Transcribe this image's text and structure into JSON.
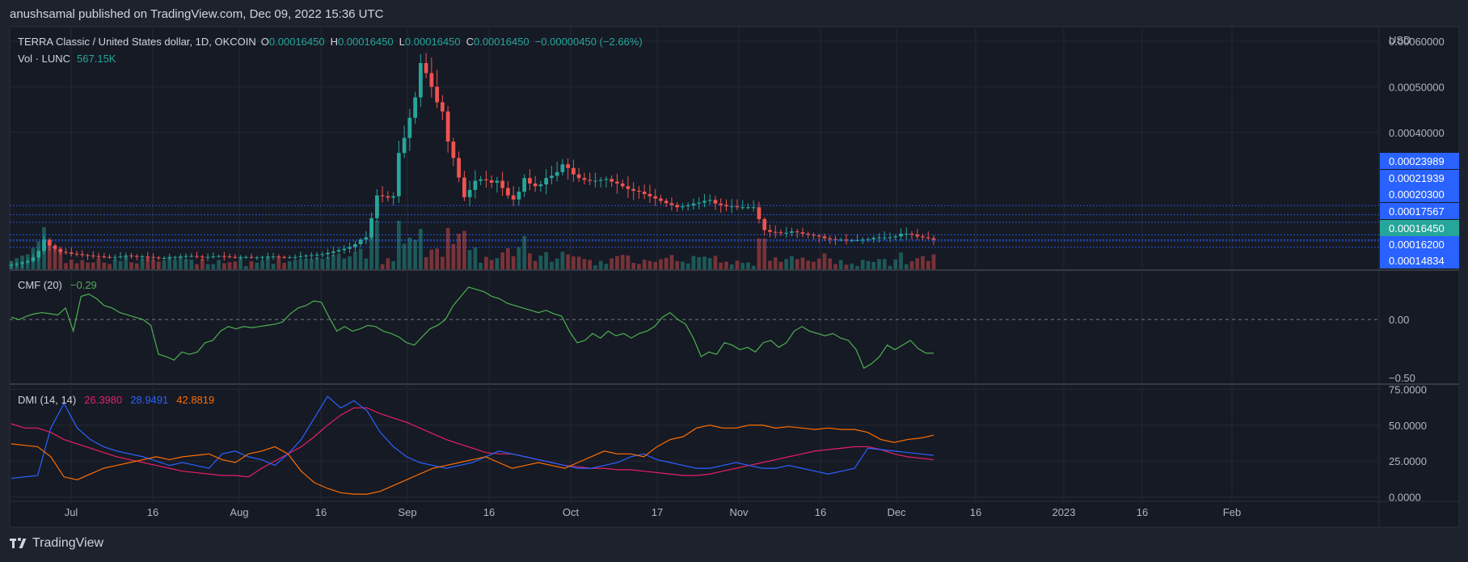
{
  "header": {
    "attribution": "anushsamal published on TradingView.com, Dec 09, 2022 15:36 UTC"
  },
  "legend": {
    "symbol": "TERRA Classic / United States dollar, 1D, OKCOIN",
    "o_label": "O",
    "o_value": "0.00016450",
    "h_label": "H",
    "h_value": "0.00016450",
    "l_label": "L",
    "l_value": "0.00016450",
    "c_label": "C",
    "c_value": "0.00016450",
    "change": "−0.00000450 (−2.66%)",
    "vol_label": "Vol · LUNC",
    "vol_value": "567.15K"
  },
  "footer": {
    "brand": "TradingView"
  },
  "colors": {
    "background": "#1e222d",
    "up": "#26a69a",
    "down": "#ef5350",
    "cmf": "#4caf50",
    "dmi_plus": "#2962ff",
    "dmi_minus": "#e91e63",
    "adx": "#ff6d00",
    "price_tag": "#2962ff",
    "last_price_tag": "#26a69a"
  },
  "chart_data": [
    {
      "type": "candlestick",
      "title": "TERRA Classic / United States dollar, 1D, OKCOIN",
      "axis_currency": "USD",
      "y_ticks": [
        "0.00060000",
        "0.00050000",
        "0.00040000"
      ],
      "ylim": [
        0.0001,
        0.00063
      ],
      "price_levels": [
        "0.00023989",
        "0.00021939",
        "0.00020300",
        "0.00017567",
        "0.00016450",
        "0.00016200",
        "0.00014834"
      ],
      "last_price": "0.00016450",
      "x_ticks": [
        "Jul",
        "16",
        "Aug",
        "16",
        "Sep",
        "16",
        "Oct",
        "17",
        "Nov",
        "16",
        "Dec",
        "16",
        "2023",
        "16",
        "Feb"
      ],
      "date_range": [
        "2022-06-20",
        "2022-12-09"
      ],
      "close_series": [
        0.00011,
        0.000112,
        0.000115,
        0.000118,
        0.000126,
        0.00014,
        0.000165,
        0.000152,
        0.000145,
        0.000138,
        0.000137,
        0.000134,
        0.000133,
        0.000131,
        0.00013,
        0.000129,
        0.000128,
        0.000127,
        0.000126,
        0.000127,
        0.000128,
        0.00013,
        0.000129,
        0.000128,
        0.000128,
        0.000127,
        0.000126,
        0.000125,
        0.000125,
        0.000126,
        0.000127,
        0.000128,
        0.000129,
        0.000129,
        0.000128,
        0.000127,
        0.000127,
        0.000128,
        0.000129,
        0.000128,
        0.000127,
        0.000126,
        0.000127,
        0.000127,
        0.000126,
        0.000126,
        0.000127,
        0.000128,
        0.000128,
        0.000127,
        0.000126,
        0.000126,
        0.000127,
        0.000129,
        0.00013,
        0.000131,
        0.000132,
        0.000133,
        0.000136,
        0.000139,
        0.000142,
        0.000145,
        0.000149,
        0.000155,
        0.000165,
        0.00017,
        0.000212,
        0.000262,
        0.00026,
        0.000257,
        0.00026,
        0.000355,
        0.000388,
        0.000432,
        0.000477,
        0.000552,
        0.00053,
        0.0005,
        0.000466,
        0.000446,
        0.00038,
        0.000344,
        0.000301,
        0.000258,
        0.000274,
        0.000294,
        0.000297,
        0.000295,
        0.00029,
        0.000294,
        0.000278,
        0.000262,
        0.000253,
        0.00027,
        0.0003,
        0.000288,
        0.000282,
        0.000286,
        0.0003,
        0.000305,
        0.000313,
        0.00033,
        0.000322,
        0.000308,
        0.0003,
        0.000296,
        0.000294,
        0.000294,
        0.000296,
        0.000298,
        0.000292,
        0.000288,
        0.000282,
        0.000276,
        0.000272,
        0.00027,
        0.000265,
        0.00026,
        0.000255,
        0.00025,
        0.000245,
        0.000241,
        0.000236,
        0.000238,
        0.00024,
        0.000244,
        0.000246,
        0.00025,
        0.000252,
        0.000244,
        0.000241,
        0.000238,
        0.000238,
        0.000236,
        0.000236,
        0.000236,
        0.000236,
        0.00021,
        0.000186,
        0.000182,
        0.000181,
        0.00018,
        0.00018,
        0.000183,
        0.000181,
        0.000178,
        0.000176,
        0.000174,
        0.000172,
        0.000168,
        0.000166,
        0.000165,
        0.000165,
        0.000164,
        0.000164,
        0.000164,
        0.000165,
        0.000166,
        0.000169,
        0.00017,
        0.00017,
        0.00017,
        0.000172,
        0.000178,
        0.000178,
        0.000176,
        0.000172,
        0.00017,
        0.000168,
        0.000165
      ]
    },
    {
      "type": "line",
      "title": "CMF (20)",
      "value": "−0.29",
      "y_ticks": [
        "0.00",
        "−0.50"
      ],
      "ylim": [
        -0.55,
        0.42
      ],
      "values": [
        0.02,
        0.0,
        0.03,
        0.05,
        0.06,
        0.05,
        0.04,
        0.1,
        -0.1,
        0.2,
        0.22,
        0.18,
        0.12,
        0.1,
        0.06,
        0.04,
        0.02,
        0.0,
        -0.05,
        -0.3,
        -0.32,
        -0.35,
        -0.28,
        -0.3,
        -0.28,
        -0.2,
        -0.18,
        -0.1,
        -0.06,
        -0.08,
        -0.06,
        -0.07,
        -0.06,
        -0.05,
        -0.04,
        -0.02,
        0.05,
        0.1,
        0.12,
        0.16,
        0.15,
        0.02,
        -0.1,
        -0.06,
        -0.1,
        -0.08,
        -0.05,
        -0.06,
        -0.1,
        -0.12,
        -0.15,
        -0.2,
        -0.22,
        -0.15,
        -0.08,
        -0.05,
        0.0,
        0.12,
        0.2,
        0.28,
        0.26,
        0.24,
        0.2,
        0.18,
        0.14,
        0.12,
        0.1,
        0.08,
        0.06,
        0.08,
        0.05,
        0.03,
        -0.1,
        -0.2,
        -0.18,
        -0.12,
        -0.16,
        -0.1,
        -0.14,
        -0.12,
        -0.16,
        -0.12,
        -0.1,
        -0.06,
        0.02,
        0.06,
        0.0,
        -0.04,
        -0.16,
        -0.32,
        -0.28,
        -0.3,
        -0.2,
        -0.22,
        -0.26,
        -0.24,
        -0.28,
        -0.2,
        -0.18,
        -0.24,
        -0.2,
        -0.1,
        -0.06,
        -0.1,
        -0.12,
        -0.14,
        -0.12,
        -0.16,
        -0.18,
        -0.26,
        -0.42,
        -0.38,
        -0.32,
        -0.22,
        -0.26,
        -0.22,
        -0.18,
        -0.25,
        -0.29,
        -0.29
      ]
    },
    {
      "type": "line",
      "title": "DMI (14, 14)",
      "value_labels": [
        "26.3980",
        "28.9491",
        "42.8819"
      ],
      "y_ticks": [
        "75.0000",
        "50.0000",
        "25.0000",
        "0.0000"
      ],
      "ylim": [
        -3,
        78
      ],
      "series": [
        {
          "values": [
            51,
            48,
            48,
            45,
            40,
            37,
            34,
            31,
            28,
            26,
            24,
            22,
            20,
            18,
            17,
            16,
            15,
            15,
            14,
            20,
            25,
            30,
            35,
            42,
            50,
            57,
            62,
            62,
            58,
            55,
            52,
            48,
            44,
            40,
            37,
            34,
            31,
            30,
            30,
            28,
            26,
            24,
            22,
            21,
            20,
            20,
            19,
            19,
            18,
            17,
            16,
            15,
            15,
            16,
            18,
            20,
            22,
            24,
            26,
            28,
            30,
            32,
            33,
            34,
            35,
            35,
            33,
            30,
            28,
            27,
            26
          ]
        },
        {
          "values": [
            13,
            14,
            15,
            48,
            65,
            48,
            40,
            35,
            32,
            30,
            28,
            25,
            22,
            24,
            22,
            20,
            30,
            32,
            28,
            26,
            22,
            30,
            40,
            55,
            70,
            62,
            67,
            60,
            45,
            35,
            28,
            24,
            22,
            20,
            22,
            24,
            28,
            32,
            30,
            28,
            26,
            24,
            22,
            20,
            20,
            22,
            24,
            28,
            30,
            26,
            24,
            22,
            20,
            20,
            22,
            24,
            22,
            20,
            20,
            22,
            20,
            18,
            16,
            18,
            20,
            34,
            33,
            32,
            31,
            30,
            29
          ]
        },
        {
          "values": [
            37,
            36,
            35,
            28,
            14,
            12,
            16,
            20,
            22,
            24,
            26,
            28,
            26,
            28,
            29,
            30,
            26,
            24,
            30,
            32,
            35,
            30,
            18,
            10,
            6,
            3,
            2,
            2,
            4,
            8,
            12,
            16,
            20,
            22,
            24,
            26,
            28,
            24,
            20,
            22,
            24,
            22,
            20,
            24,
            28,
            32,
            30,
            30,
            28,
            35,
            40,
            42,
            48,
            50,
            48,
            48,
            50,
            50,
            48,
            49,
            48,
            47,
            48,
            47,
            47,
            45,
            40,
            38,
            40,
            41,
            43
          ]
        }
      ]
    }
  ]
}
